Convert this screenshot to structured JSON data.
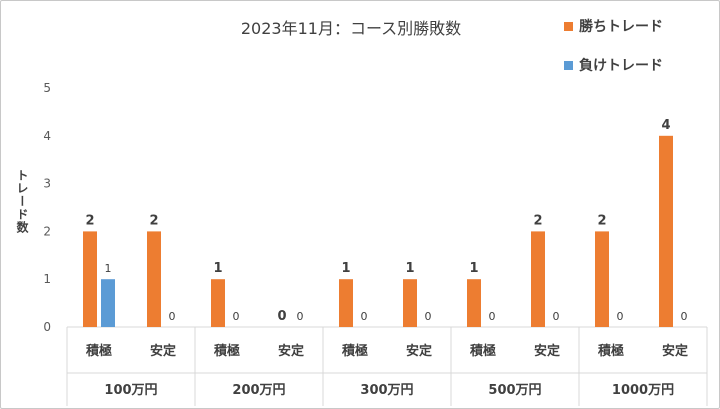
{
  "chart_data": {
    "type": "bar",
    "title": "2023年11月：コース別勝敗数",
    "ylabel": "トレード数",
    "xlabel": "",
    "ylim": [
      0,
      5
    ],
    "yticks": [
      0,
      1,
      2,
      3,
      4,
      5
    ],
    "legend_position": "top-right",
    "grid": false,
    "groups": [
      "100万円",
      "200万円",
      "300万円",
      "500万円",
      "1000万円"
    ],
    "categories": [
      "積極",
      "安定",
      "積極",
      "安定",
      "積極",
      "安定",
      "積極",
      "安定",
      "積極",
      "安定"
    ],
    "series": [
      {
        "name": "勝ちトレード",
        "color": "#ED7D31",
        "values": [
          2,
          2,
          1,
          0,
          1,
          1,
          1,
          2,
          2,
          4
        ]
      },
      {
        "name": "負けトレード",
        "color": "#5B9BD5",
        "values": [
          1,
          0,
          0,
          0,
          0,
          0,
          0,
          0,
          0,
          0
        ]
      }
    ]
  }
}
